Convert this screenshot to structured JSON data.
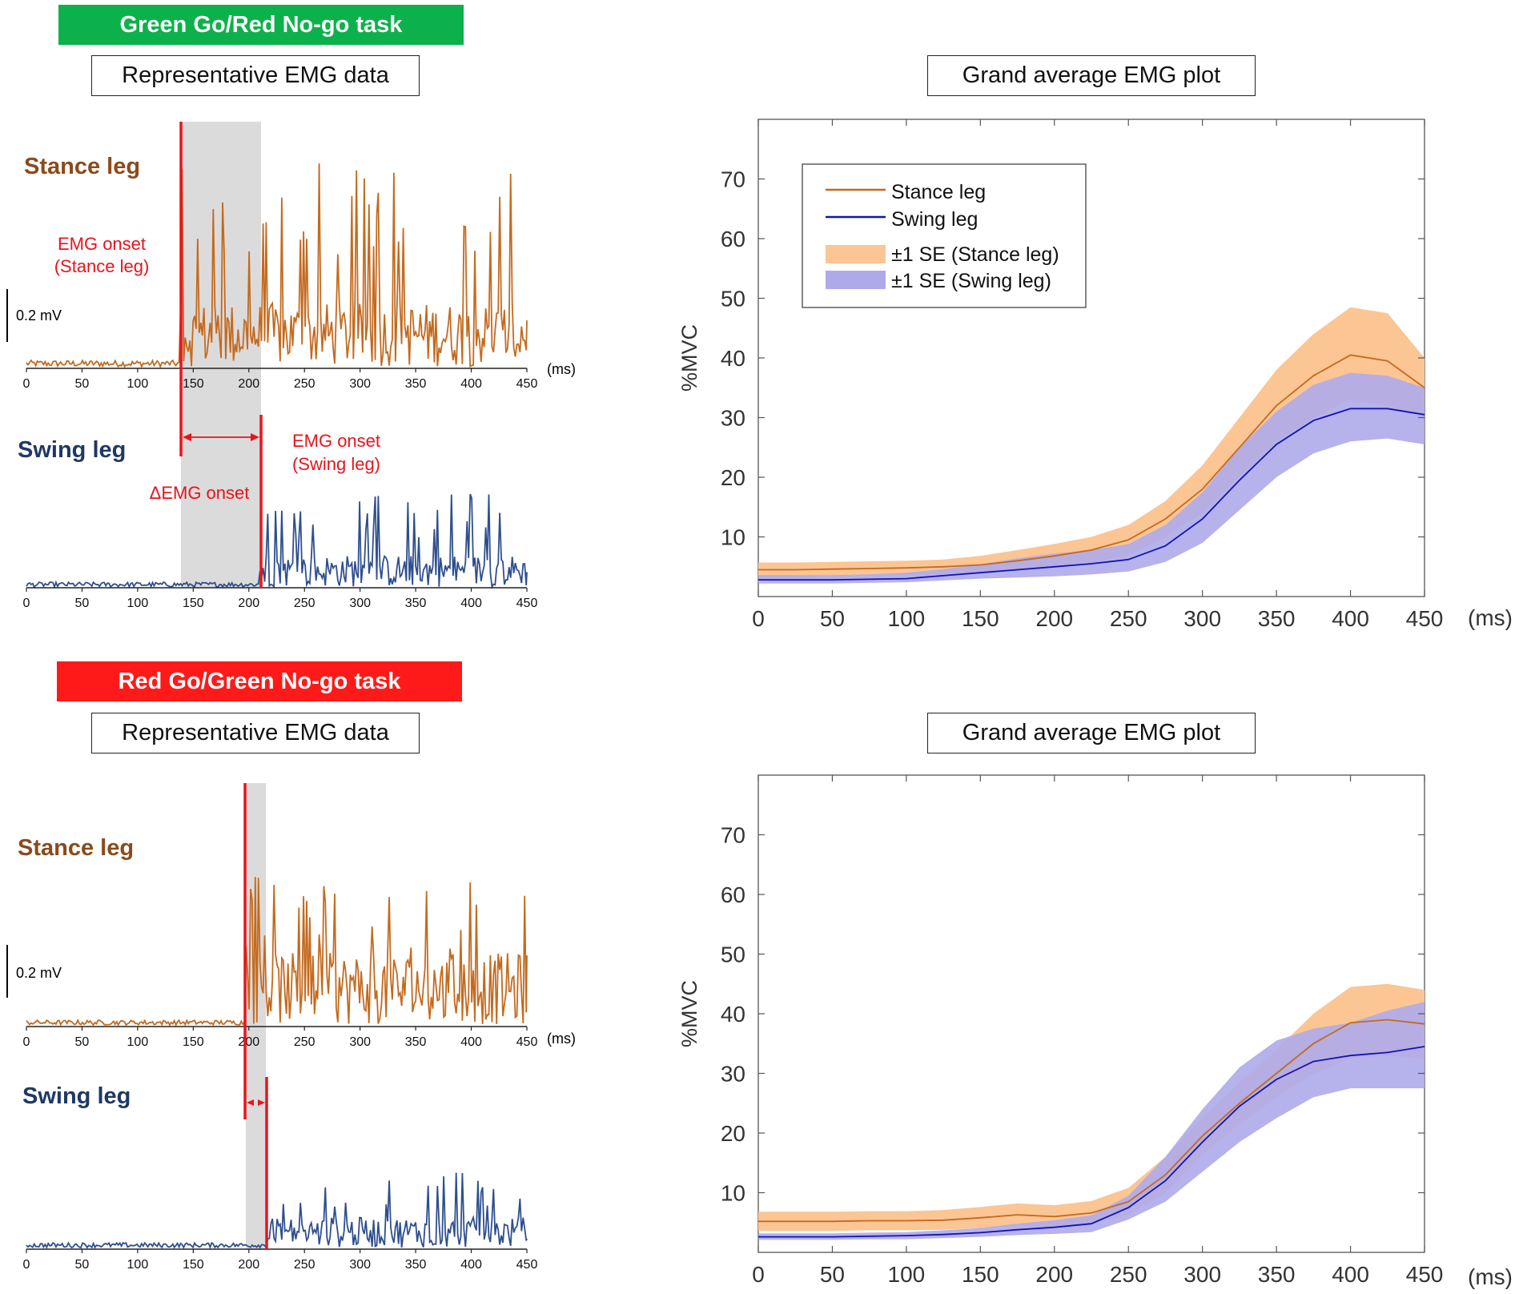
{
  "colors": {
    "green_banner": "#0db14b",
    "red_banner": "#ff1a1a",
    "stance": "#c46a1e",
    "stance_label": "#8b4a1c",
    "swing_trace": "#2e4f8f",
    "swing_label": "#1f3864",
    "swing_line": "#1212b4",
    "stance_band": "#fbc594",
    "swing_band": "#aeaaea",
    "onset": "#e8141c",
    "shade": "#dcdbdb"
  },
  "panels": [
    {
      "task_label": "Green Go/Red No-go task",
      "task_color": "green",
      "rep_title": "Representative EMG data",
      "stance_label": "Stance leg",
      "swing_label": "Swing leg",
      "scale_label": "0.2 mV",
      "ms_label": "(ms)",
      "ticks": [
        "0",
        "50",
        "100",
        "150",
        "200",
        "250",
        "300",
        "350",
        "400",
        "450"
      ],
      "stance_onset_label_1": "EMG onset",
      "stance_onset_label_2": "(Stance leg)",
      "swing_onset_label_1": "EMG onset",
      "swing_onset_label_2": "(Swing leg)",
      "delta_label": "ΔEMG onset",
      "stance_onset_ms": 138,
      "swing_onset_ms": 210,
      "grand_title": "Grand average EMG plot"
    },
    {
      "task_label": "Red Go/Green No-go task",
      "task_color": "red",
      "rep_title": "Representative EMG data",
      "stance_label": "Stance leg",
      "swing_label": "Swing leg",
      "scale_label": "0.2 mV",
      "ms_label": "(ms)",
      "ticks": [
        "0",
        "50",
        "100",
        "150",
        "200",
        "250",
        "300",
        "350",
        "400",
        "450"
      ],
      "stance_onset_ms": 197,
      "swing_onset_ms": 216,
      "grand_title": "Grand average EMG plot"
    }
  ],
  "chart_data": [
    {
      "type": "line",
      "title": "Grand average EMG plot",
      "xlabel": "(ms)",
      "ylabel": "%MVC",
      "xlim": [
        0,
        450
      ],
      "ylim": [
        0,
        80
      ],
      "xticks": [
        0,
        50,
        100,
        150,
        200,
        250,
        300,
        350,
        400,
        450
      ],
      "yticks": [
        10,
        20,
        30,
        40,
        50,
        60,
        70
      ],
      "legend": [
        "Stance leg",
        "Swing leg",
        "±1 SE (Stance leg)",
        "±1 SE (Swing leg)"
      ],
      "legend_position": "top-left",
      "x": [
        0,
        25,
        50,
        75,
        100,
        125,
        150,
        175,
        200,
        225,
        250,
        275,
        300,
        325,
        350,
        375,
        400,
        425,
        450
      ],
      "series": [
        {
          "name": "Stance leg",
          "values": [
            4.5,
            4.5,
            4.6,
            4.7,
            4.8,
            5.0,
            5.3,
            6.0,
            6.8,
            7.8,
            9.5,
            13.0,
            18.0,
            25.0,
            32.0,
            37.0,
            40.5,
            39.5,
            35.0
          ],
          "se_upper": [
            5.7,
            5.7,
            5.8,
            5.9,
            6.0,
            6.2,
            6.8,
            7.8,
            8.8,
            10.0,
            12.0,
            16.0,
            22.0,
            30.0,
            38.0,
            44.0,
            48.5,
            47.5,
            40.0
          ],
          "se_lower": [
            3.3,
            3.3,
            3.4,
            3.5,
            3.6,
            3.8,
            4.0,
            4.4,
            5.0,
            5.6,
            7.0,
            10.0,
            14.0,
            20.0,
            26.0,
            30.0,
            33.0,
            32.0,
            30.0
          ]
        },
        {
          "name": "Swing leg",
          "values": [
            2.8,
            2.8,
            2.8,
            2.9,
            3.0,
            3.5,
            4.0,
            4.5,
            5.0,
            5.5,
            6.2,
            8.5,
            13.0,
            19.5,
            25.5,
            29.5,
            31.5,
            31.5,
            30.5
          ],
          "se_upper": [
            3.6,
            3.6,
            3.6,
            3.7,
            4.0,
            4.6,
            5.4,
            6.4,
            7.2,
            7.8,
            8.8,
            12.0,
            17.5,
            25.0,
            31.0,
            35.5,
            37.5,
            37.0,
            35.0
          ],
          "se_lower": [
            2.2,
            2.2,
            2.2,
            2.3,
            2.4,
            2.7,
            3.0,
            3.2,
            3.4,
            3.7,
            4.2,
            5.8,
            9.0,
            14.5,
            20.0,
            24.0,
            26.0,
            26.5,
            25.5
          ]
        }
      ]
    },
    {
      "type": "line",
      "title": "Grand average EMG plot",
      "xlabel": "(ms)",
      "ylabel": "%MVC",
      "xlim": [
        0,
        450
      ],
      "ylim": [
        0,
        80
      ],
      "xticks": [
        0,
        50,
        100,
        150,
        200,
        250,
        300,
        350,
        400,
        450
      ],
      "yticks": [
        10,
        20,
        30,
        40,
        50,
        60,
        70
      ],
      "x": [
        0,
        25,
        50,
        75,
        100,
        125,
        150,
        175,
        200,
        225,
        250,
        275,
        300,
        325,
        350,
        375,
        400,
        425,
        450
      ],
      "series": [
        {
          "name": "Stance leg",
          "values": [
            5.2,
            5.2,
            5.2,
            5.3,
            5.3,
            5.4,
            5.8,
            6.3,
            6.0,
            6.6,
            8.5,
            13.0,
            19.5,
            25.0,
            30.0,
            35.0,
            38.5,
            39.0,
            38.3
          ],
          "se_upper": [
            6.8,
            6.8,
            6.8,
            6.9,
            6.9,
            7.1,
            7.6,
            8.2,
            7.9,
            8.6,
            10.8,
            16.0,
            22.5,
            28.5,
            34.0,
            40.0,
            44.5,
            45.0,
            44.0
          ],
          "se_lower": [
            3.6,
            3.6,
            3.6,
            3.7,
            3.7,
            3.8,
            4.1,
            4.5,
            4.2,
            4.7,
            6.3,
            10.0,
            16.5,
            21.5,
            26.0,
            30.0,
            32.5,
            33.0,
            32.5
          ]
        },
        {
          "name": "Swing leg",
          "values": [
            2.6,
            2.6,
            2.6,
            2.7,
            2.8,
            3.0,
            3.3,
            3.8,
            4.2,
            4.8,
            7.5,
            12.0,
            18.5,
            24.5,
            29.0,
            32.0,
            33.0,
            33.5,
            34.5
          ],
          "se_upper": [
            3.2,
            3.2,
            3.2,
            3.3,
            3.4,
            3.7,
            4.1,
            4.8,
            5.4,
            6.2,
            9.5,
            16.0,
            24.0,
            31.0,
            35.5,
            37.5,
            38.5,
            40.5,
            42.0
          ],
          "se_lower": [
            2.1,
            2.1,
            2.1,
            2.2,
            2.2,
            2.4,
            2.6,
            2.9,
            3.1,
            3.4,
            5.5,
            8.5,
            13.5,
            18.5,
            22.5,
            26.0,
            27.5,
            27.5,
            27.5
          ]
        }
      ]
    }
  ]
}
